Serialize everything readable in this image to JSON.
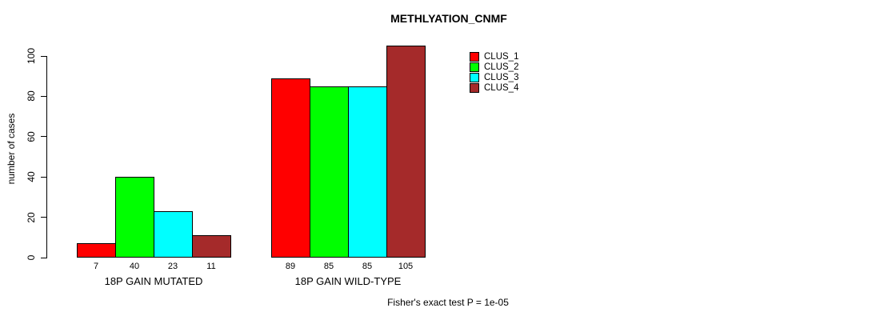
{
  "title": "METHLYATION_CNMF",
  "footnote": "Fisher's exact test P = 1e-05",
  "chart_data": {
    "type": "bar",
    "title": "METHLYATION_CNMF",
    "xlabel": "",
    "ylabel": "number of cases",
    "ylim": [
      0,
      105
    ],
    "yticks": [
      0,
      20,
      40,
      60,
      80,
      100
    ],
    "grid": false,
    "show_bar_value_labels": true,
    "legend_position": "top-right",
    "annotation": "Fisher's exact test P = 1e-05",
    "groups": [
      {
        "label": "18P GAIN MUTATED",
        "values": [
          7,
          40,
          23,
          11
        ]
      },
      {
        "label": "18P GAIN WILD-TYPE",
        "values": [
          89,
          85,
          85,
          105
        ]
      }
    ],
    "series": [
      {
        "name": "CLUS_1",
        "color": "#FF0000"
      },
      {
        "name": "CLUS_2",
        "color": "#00FF00"
      },
      {
        "name": "CLUS_3",
        "color": "#00FFFF"
      },
      {
        "name": "CLUS_4",
        "color": "#A52A2A"
      }
    ]
  }
}
